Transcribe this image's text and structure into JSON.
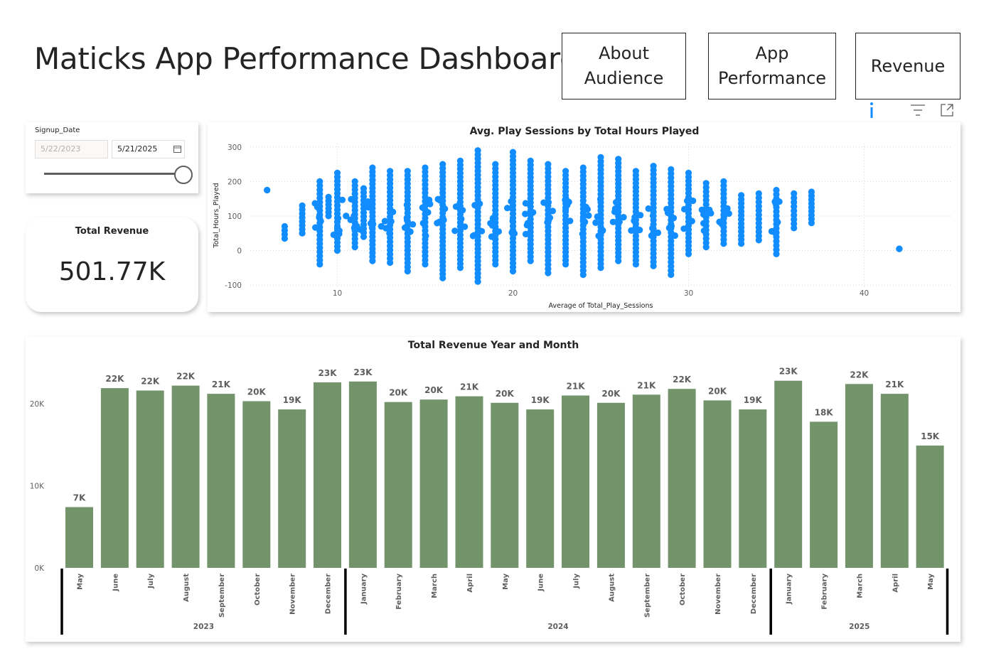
{
  "page": {
    "title": "Maticks App Performance Dashboard"
  },
  "nav": {
    "about_audience": "About Audience",
    "app_performance": "App Performance",
    "revenue": "Revenue"
  },
  "visual_toolbar": {
    "icons": [
      "info-icon",
      "filter-icon",
      "focus-mode-icon"
    ]
  },
  "slicer": {
    "label": "Signup_Date",
    "start_date": "5/22/2023",
    "end_date": "5/21/2025",
    "range_position": 1.0
  },
  "kpi": {
    "label": "Total Revenue",
    "value": "501.77K"
  },
  "colors": {
    "scatter_point": "#118dff",
    "bar_fill": "#73946b",
    "text": "#252423"
  },
  "scatter_chart": {
    "title": "Avg. Play Sessions by Total Hours Played",
    "xlabel": "Average of Total_Play_Sessions",
    "ylabel": "Total_Hours_Played",
    "x_ticks": [
      "10",
      "20",
      "30",
      "40"
    ],
    "y_ticks": [
      "300",
      "200",
      "100",
      "0",
      "-100"
    ]
  },
  "bar_chart": {
    "title": "Total Revenue Year and Month",
    "y_ticks": [
      "20K",
      "10K",
      "0K"
    ],
    "years": [
      {
        "label": "2023",
        "months": 8
      },
      {
        "label": "2024",
        "months": 12
      },
      {
        "label": "2025",
        "months": 5
      }
    ]
  },
  "chart_data": [
    {
      "type": "scatter",
      "title": "Avg. Play Sessions by Total Hours Played",
      "xlabel": "Average of Total_Play_Sessions",
      "ylabel": "Total_Hours_Played",
      "xlim": [
        5,
        50
      ],
      "ylim": [
        -100,
        300
      ],
      "grid": true,
      "columns": [
        {
          "x": 6,
          "ymin": 175,
          "ymax": 175
        },
        {
          "x": 7,
          "ymin": 35,
          "ymax": 70
        },
        {
          "x": 8,
          "ymin": 50,
          "ymax": 130
        },
        {
          "x": 9,
          "ymin": -40,
          "ymax": 200
        },
        {
          "x": 9.5,
          "ymin": 100,
          "ymax": 155
        },
        {
          "x": 10,
          "ymin": 0,
          "ymax": 225
        },
        {
          "x": 10.5,
          "ymin": 100,
          "ymax": 100
        },
        {
          "x": 11,
          "ymin": 10,
          "ymax": 200
        },
        {
          "x": 11.5,
          "ymin": 40,
          "ymax": 180
        },
        {
          "x": 12,
          "ymin": -30,
          "ymax": 240
        },
        {
          "x": 12.5,
          "ymin": 70,
          "ymax": 70
        },
        {
          "x": 13,
          "ymin": -35,
          "ymax": 230
        },
        {
          "x": 14,
          "ymin": -60,
          "ymax": 230
        },
        {
          "x": 15,
          "ymin": -40,
          "ymax": 240
        },
        {
          "x": 16,
          "ymin": -80,
          "ymax": 250
        },
        {
          "x": 17,
          "ymin": -50,
          "ymax": 260
        },
        {
          "x": 18,
          "ymin": -90,
          "ymax": 290
        },
        {
          "x": 19,
          "ymin": -40,
          "ymax": 250
        },
        {
          "x": 20,
          "ymin": -60,
          "ymax": 285
        },
        {
          "x": 21,
          "ymin": -30,
          "ymax": 260
        },
        {
          "x": 22,
          "ymin": -65,
          "ymax": 250
        },
        {
          "x": 23,
          "ymin": -40,
          "ymax": 230
        },
        {
          "x": 24,
          "ymin": -70,
          "ymax": 240
        },
        {
          "x": 25,
          "ymin": -50,
          "ymax": 270
        },
        {
          "x": 26,
          "ymin": -30,
          "ymax": 265
        },
        {
          "x": 27,
          "ymin": -40,
          "ymax": 230
        },
        {
          "x": 28,
          "ymin": -45,
          "ymax": 245
        },
        {
          "x": 29,
          "ymin": -70,
          "ymax": 235
        },
        {
          "x": 30,
          "ymin": -10,
          "ymax": 225
        },
        {
          "x": 31,
          "ymin": 10,
          "ymax": 195
        },
        {
          "x": 32,
          "ymin": 20,
          "ymax": 200
        },
        {
          "x": 33,
          "ymin": 20,
          "ymax": 160
        },
        {
          "x": 34,
          "ymin": 30,
          "ymax": 165
        },
        {
          "x": 35,
          "ymin": -10,
          "ymax": 175
        },
        {
          "x": 36,
          "ymin": 65,
          "ymax": 165
        },
        {
          "x": 37,
          "ymin": 80,
          "ymax": 170
        },
        {
          "x": 42,
          "ymin": 5,
          "ymax": 5
        }
      ]
    },
    {
      "type": "bar",
      "title": "Total Revenue Year and Month",
      "xlabel": "",
      "ylabel": "",
      "ylim": [
        0,
        26000
      ],
      "categories": [
        "May",
        "June",
        "July",
        "August",
        "September",
        "October",
        "November",
        "December",
        "January",
        "February",
        "March",
        "April",
        "May",
        "June",
        "July",
        "August",
        "September",
        "October",
        "November",
        "December",
        "January",
        "February",
        "March",
        "April",
        "May"
      ],
      "values": [
        7400,
        21900,
        21600,
        22200,
        21200,
        20300,
        19300,
        22600,
        22700,
        20200,
        20500,
        20900,
        20100,
        19300,
        21000,
        20100,
        21100,
        21800,
        20400,
        19300,
        22800,
        17800,
        22400,
        21200,
        14900
      ],
      "data_labels": [
        "7K",
        "22K",
        "22K",
        "22K",
        "21K",
        "20K",
        "19K",
        "23K",
        "23K",
        "20K",
        "20K",
        "21K",
        "20K",
        "19K",
        "21K",
        "20K",
        "21K",
        "22K",
        "20K",
        "19K",
        "23K",
        "18K",
        "22K",
        "21K",
        "15K"
      ],
      "groups": [
        "2023",
        "2024",
        "2025"
      ]
    }
  ]
}
